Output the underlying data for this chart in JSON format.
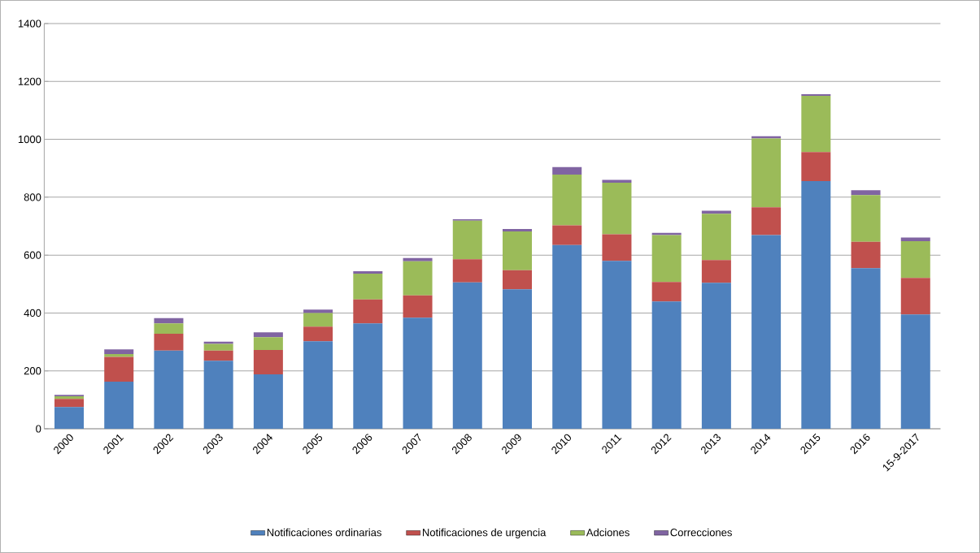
{
  "chart_data": {
    "type": "bar",
    "stacked": true,
    "categories": [
      "2000",
      "2001",
      "2002",
      "2003",
      "2004",
      "2005",
      "2006",
      "2007",
      "2008",
      "2009",
      "2010",
      "2011",
      "2012",
      "2013",
      "2014",
      "2015",
      "2016",
      "15-9-2017"
    ],
    "series": [
      {
        "name": "Notificaciones ordinarias",
        "color": "#4f81bd",
        "values": [
          75,
          163,
          270,
          235,
          188,
          302,
          364,
          384,
          506,
          482,
          635,
          580,
          440,
          504,
          669,
          856,
          555,
          395
        ]
      },
      {
        "name": "Notificaciones de urgencia",
        "color": "#c0504d",
        "values": [
          28,
          85,
          58,
          35,
          84,
          51,
          83,
          77,
          80,
          66,
          68,
          92,
          67,
          79,
          96,
          100,
          91,
          126
        ]
      },
      {
        "name": "Adciones",
        "color": "#9bbb59",
        "values": [
          9,
          10,
          36,
          23,
          44,
          47,
          89,
          118,
          133,
          134,
          175,
          178,
          162,
          160,
          238,
          194,
          161,
          127
        ]
      },
      {
        "name": "Correcciones",
        "color": "#8064a2",
        "values": [
          5,
          16,
          18,
          8,
          17,
          12,
          8,
          11,
          5,
          8,
          26,
          10,
          8,
          10,
          8,
          6,
          17,
          13
        ]
      }
    ],
    "ylim": [
      0,
      1400
    ],
    "yticks": [
      0,
      200,
      400,
      600,
      800,
      1000,
      1200,
      1400
    ],
    "grid": "y",
    "legend": "bottom"
  }
}
